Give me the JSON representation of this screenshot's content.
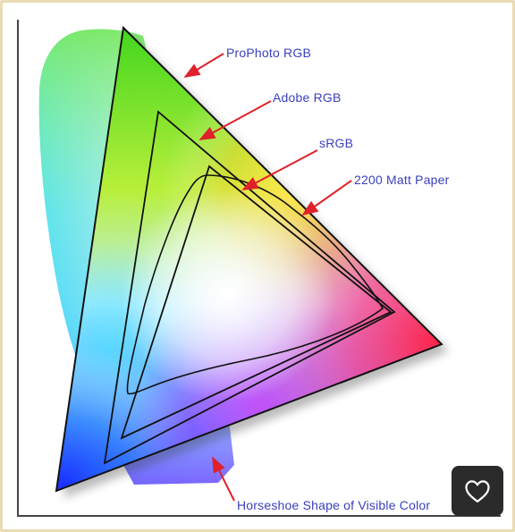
{
  "labels": {
    "prophoto": "ProPhoto RGB",
    "adobe": "Adobe RGB",
    "srgb": "sRGB",
    "paper": "2200 Matt Paper",
    "horseshoe": "Horseshoe Shape of Visible Color"
  },
  "colors": {
    "label_text": "#3a3fbf",
    "arrows": "#e0202a",
    "outlines": "#111111",
    "frame_border": "#e9dcb4",
    "favorite_button_bg": "#2b2b2b"
  },
  "icons": {
    "favorite": "heart-outline-icon"
  }
}
